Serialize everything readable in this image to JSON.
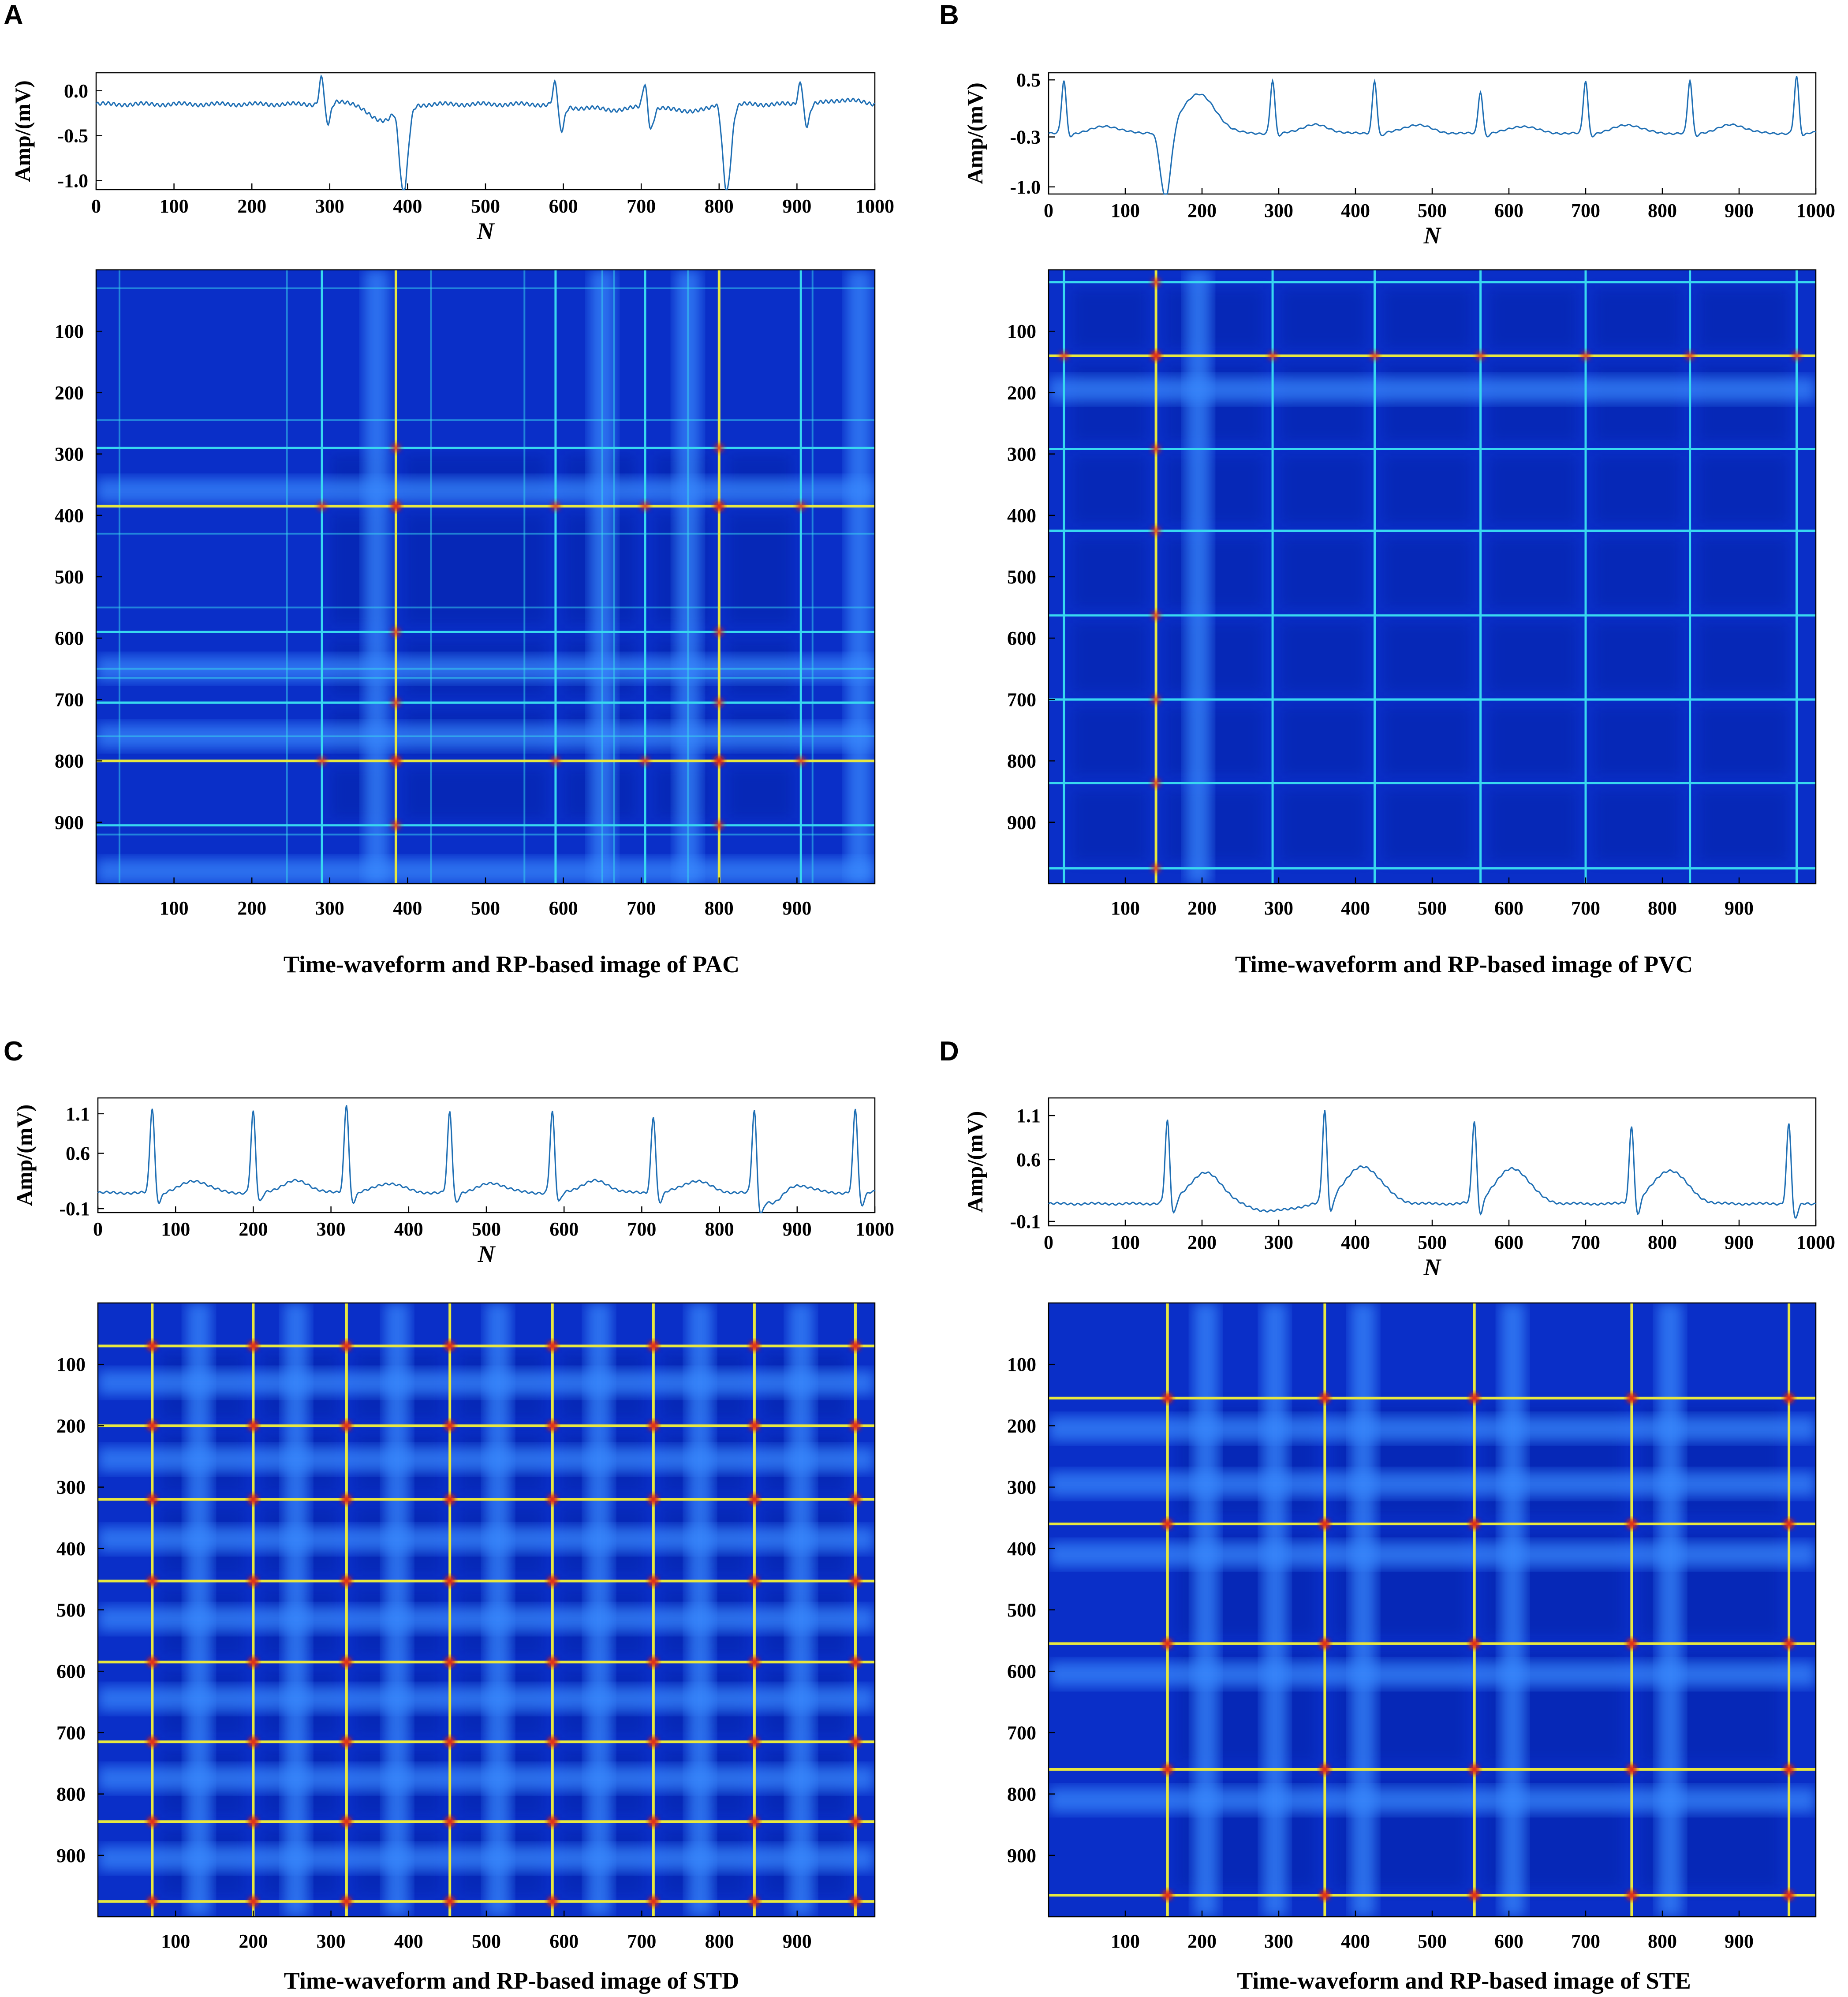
{
  "figure": {
    "panels": [
      {
        "letter": "A",
        "caption": "Time-waveform and RP-based image of PAC",
        "waveform": {
          "ylabel": "Amp/(mV)",
          "xlabel": "N",
          "xlim": [
            0,
            1000
          ],
          "ylim": [
            -1.1,
            0.2
          ],
          "xticks": [
            0,
            100,
            200,
            300,
            400,
            500,
            600,
            700,
            800,
            900,
            1000
          ],
          "yticks": [
            0.0,
            -0.5,
            -1.0
          ],
          "ytick_labels": [
            "0.0",
            "-0.5",
            "-1.0"
          ],
          "baseline": -0.15,
          "noise_amp": 0.018,
          "noise_freq": 0.9,
          "beats": [
            {
              "pos": 290,
              "r_amp": 0.35,
              "s_amp": -0.25,
              "width": 5,
              "t_amp": 0.05
            },
            {
              "pos": 385,
              "r_amp": 0.1,
              "s_amp": -0.95,
              "width": 7,
              "t_amp": 0.0
            },
            {
              "pos": 590,
              "r_amp": 0.3,
              "s_amp": -0.3,
              "width": 5,
              "t_amp": 0.05
            },
            {
              "pos": 705,
              "r_amp": 0.3,
              "s_amp": -0.25,
              "width": 5,
              "t_amp": 0.05
            },
            {
              "pos": 800,
              "r_amp": 0.1,
              "s_amp": -0.95,
              "width": 7,
              "t_amp": 0.0
            },
            {
              "pos": 905,
              "r_amp": 0.3,
              "s_amp": -0.25,
              "width": 5,
              "t_amp": 0.05
            }
          ],
          "waves": [
            {
              "pos": 360,
              "amp": -0.22,
              "width": 22
            },
            {
              "pos": 330,
              "amp": 0.06,
              "width": 18
            },
            {
              "pos": 650,
              "amp": -0.1,
              "width": 30
            },
            {
              "pos": 760,
              "amp": -0.12,
              "width": 25
            }
          ]
        },
        "rp": {
          "xticks": [
            100,
            200,
            300,
            400,
            500,
            600,
            700,
            800,
            900
          ],
          "yticks": [
            100,
            200,
            300,
            400,
            500,
            600,
            700,
            800,
            900
          ],
          "strong_lines": [
            385,
            800
          ],
          "medium_lines": [
            290,
            590,
            705,
            905
          ],
          "faint_lines": [
            30,
            245,
            430,
            550,
            650,
            665,
            760,
            920
          ],
          "bands": [
            360,
            650,
            760,
            980
          ]
        }
      },
      {
        "letter": "B",
        "caption": "Time-waveform and RP-based image of PVC",
        "waveform": {
          "ylabel": "Amp/(mV)",
          "xlabel": "N",
          "xlim": [
            0,
            1000
          ],
          "ylim": [
            -1.1,
            0.6
          ],
          "xticks": [
            0,
            100,
            200,
            300,
            400,
            500,
            600,
            700,
            800,
            900,
            1000
          ],
          "yticks": [
            0.5,
            -0.3,
            -1.0
          ],
          "ytick_labels": [
            "0.5",
            "-0.3",
            "-1.0"
          ],
          "baseline": -0.25,
          "noise_amp": 0.01,
          "noise_freq": 0.6,
          "beats": [
            {
              "pos": 20,
              "r_amp": 0.75,
              "s_amp": -0.05,
              "width": 5,
              "t_amp": 0.1
            },
            {
              "pos": 140,
              "r_amp": 0.05,
              "s_amp": -1.0,
              "width": 9,
              "t_amp": 0.0
            },
            {
              "pos": 292,
              "r_amp": 0.75,
              "s_amp": -0.05,
              "width": 5,
              "t_amp": 0.12
            },
            {
              "pos": 425,
              "r_amp": 0.75,
              "s_amp": -0.05,
              "width": 5,
              "t_amp": 0.12
            },
            {
              "pos": 563,
              "r_amp": 0.6,
              "s_amp": -0.05,
              "width": 5,
              "t_amp": 0.1
            },
            {
              "pos": 700,
              "r_amp": 0.75,
              "s_amp": -0.05,
              "width": 5,
              "t_amp": 0.12
            },
            {
              "pos": 836,
              "r_amp": 0.75,
              "s_amp": -0.05,
              "width": 5,
              "t_amp": 0.12
            },
            {
              "pos": 975,
              "r_amp": 0.8,
              "s_amp": -0.05,
              "width": 5,
              "t_amp": 0.1
            }
          ],
          "waves": [
            {
              "pos": 195,
              "amp": 0.55,
              "width": 22
            }
          ]
        },
        "rp": {
          "xticks": [
            100,
            200,
            300,
            400,
            500,
            600,
            700,
            800,
            900
          ],
          "yticks": [
            100,
            200,
            300,
            400,
            500,
            600,
            700,
            800,
            900
          ],
          "strong_lines": [
            140
          ],
          "medium_lines": [
            20,
            292,
            425,
            563,
            700,
            836,
            975
          ],
          "faint_lines": [],
          "bands": [
            195
          ]
        }
      },
      {
        "letter": "C",
        "caption": "Time-waveform and RP-based image of STD",
        "waveform": {
          "ylabel": "Amp/(mV)",
          "xlabel": "N",
          "xlim": [
            0,
            1000
          ],
          "ylim": [
            -0.15,
            1.3
          ],
          "xticks": [
            0,
            100,
            200,
            300,
            400,
            500,
            600,
            700,
            800,
            900,
            1000
          ],
          "yticks": [
            1.1,
            0.6,
            -0.1
          ],
          "ytick_labels": [
            "1.1",
            "0.6",
            "-0.1"
          ],
          "baseline": 0.1,
          "noise_amp": 0.012,
          "noise_freq": 0.7,
          "beats": [
            {
              "pos": 70,
              "r_amp": 1.1,
              "s_amp": -0.15,
              "width": 5,
              "t_amp": 0.15
            },
            {
              "pos": 200,
              "r_amp": 1.05,
              "s_amp": -0.15,
              "width": 5,
              "t_amp": 0.15
            },
            {
              "pos": 320,
              "r_amp": 1.15,
              "s_amp": -0.15,
              "width": 5,
              "t_amp": 0.12
            },
            {
              "pos": 453,
              "r_amp": 1.05,
              "s_amp": -0.15,
              "width": 5,
              "t_amp": 0.12
            },
            {
              "pos": 585,
              "r_amp": 1.05,
              "s_amp": -0.15,
              "width": 5,
              "t_amp": 0.15
            },
            {
              "pos": 715,
              "r_amp": 1.0,
              "s_amp": -0.15,
              "width": 5,
              "t_amp": 0.15
            },
            {
              "pos": 845,
              "r_amp": 1.1,
              "s_amp": -0.25,
              "width": 5,
              "t_amp": 0.1
            },
            {
              "pos": 975,
              "r_amp": 1.1,
              "s_amp": -0.2,
              "width": 5,
              "t_amp": 0.1
            }
          ],
          "waves": [
            {
              "pos": 870,
              "amp": -0.15,
              "width": 12
            }
          ]
        },
        "rp": {
          "xticks": [
            100,
            200,
            300,
            400,
            500,
            600,
            700,
            800,
            900
          ],
          "yticks": [
            100,
            200,
            300,
            400,
            500,
            600,
            700,
            800,
            900
          ],
          "strong_lines": [
            70,
            200,
            320,
            453,
            585,
            715,
            845,
            975
          ],
          "medium_lines": [],
          "faint_lines": [],
          "bands": [
            130,
            255,
            385,
            515,
            645,
            775,
            905
          ]
        }
      },
      {
        "letter": "D",
        "caption": "Time-waveform and RP-based image of STE",
        "waveform": {
          "ylabel": "Amp/(mV)",
          "xlabel": "N",
          "xlim": [
            0,
            1000
          ],
          "ylim": [
            -0.15,
            1.3
          ],
          "xticks": [
            0,
            100,
            200,
            300,
            400,
            500,
            600,
            700,
            800,
            900,
            1000
          ],
          "yticks": [
            1.1,
            0.6,
            -0.1
          ],
          "ytick_labels": [
            "1.1",
            "0.6",
            "-0.1"
          ],
          "baseline": 0.1,
          "noise_amp": 0.01,
          "noise_freq": 0.7,
          "beats": [
            {
              "pos": 155,
              "r_amp": 0.95,
              "s_amp": -0.2,
              "width": 5,
              "t_amp": 0.0
            },
            {
              "pos": 360,
              "r_amp": 1.05,
              "s_amp": -0.2,
              "width": 5,
              "t_amp": 0.0
            },
            {
              "pos": 555,
              "r_amp": 0.95,
              "s_amp": -0.2,
              "width": 5,
              "t_amp": 0.0
            },
            {
              "pos": 760,
              "r_amp": 0.9,
              "s_amp": -0.2,
              "width": 5,
              "t_amp": 0.0
            },
            {
              "pos": 965,
              "r_amp": 0.95,
              "s_amp": -0.2,
              "width": 5,
              "t_amp": 0.0
            }
          ],
          "waves": [
            {
              "pos": 205,
              "amp": 0.35,
              "width": 22
            },
            {
              "pos": 410,
              "amp": 0.42,
              "width": 24
            },
            {
              "pos": 605,
              "amp": 0.4,
              "width": 22
            },
            {
              "pos": 810,
              "amp": 0.38,
              "width": 22
            },
            {
              "pos": 290,
              "amp": -0.08,
              "width": 30
            }
          ]
        },
        "rp": {
          "xticks": [
            100,
            200,
            300,
            400,
            500,
            600,
            700,
            800,
            900
          ],
          "yticks": [
            100,
            200,
            300,
            400,
            500,
            600,
            700,
            800,
            900
          ],
          "strong_lines": [
            155,
            360,
            555,
            760,
            965
          ],
          "medium_lines": [],
          "faint_lines": [],
          "bands": [
            205,
            410,
            605,
            810,
            295
          ]
        }
      }
    ]
  },
  "chart_data": [
    {
      "type": "line",
      "title": "Time-waveform and RP-based image of PAC",
      "xlabel": "N",
      "ylabel": "Amp/(mV)",
      "xlim": [
        0,
        1000
      ],
      "yticks": [
        0.0,
        -0.5,
        -1.0
      ],
      "beats_at": [
        290,
        385,
        590,
        705,
        800,
        905
      ]
    },
    {
      "type": "heatmap",
      "title": "Time-waveform and RP-based image of PAC",
      "xlim": [
        0,
        1000
      ],
      "ylim": [
        0,
        1000
      ],
      "highlight_lines": [
        290,
        385,
        590,
        705,
        800,
        905
      ]
    },
    {
      "type": "line",
      "title": "Time-waveform and RP-based image of PVC",
      "xlabel": "N",
      "ylabel": "Amp/(mV)",
      "xlim": [
        0,
        1000
      ],
      "yticks": [
        0.5,
        -0.3,
        -1.0
      ],
      "beats_at": [
        20,
        140,
        292,
        425,
        563,
        700,
        836,
        975
      ]
    },
    {
      "type": "heatmap",
      "title": "Time-waveform and RP-based image of PVC",
      "xlim": [
        0,
        1000
      ],
      "ylim": [
        0,
        1000
      ],
      "highlight_lines": [
        20,
        140,
        292,
        425,
        563,
        700,
        836,
        975
      ]
    },
    {
      "type": "line",
      "title": "Time-waveform and RP-based image of STD",
      "xlabel": "N",
      "ylabel": "Amp/(mV)",
      "xlim": [
        0,
        1000
      ],
      "yticks": [
        1.1,
        0.6,
        -0.1
      ],
      "beats_at": [
        70,
        200,
        320,
        453,
        585,
        715,
        845,
        975
      ]
    },
    {
      "type": "heatmap",
      "title": "Time-waveform and RP-based image of STD",
      "xlim": [
        0,
        1000
      ],
      "ylim": [
        0,
        1000
      ],
      "highlight_lines": [
        70,
        200,
        320,
        453,
        585,
        715,
        845,
        975
      ]
    },
    {
      "type": "line",
      "title": "Time-waveform and RP-based image of STE",
      "xlabel": "N",
      "ylabel": "Amp/(mV)",
      "xlim": [
        0,
        1000
      ],
      "yticks": [
        1.1,
        0.6,
        -0.1
      ],
      "beats_at": [
        155,
        360,
        555,
        760,
        965
      ]
    },
    {
      "type": "heatmap",
      "title": "Time-waveform and RP-based image of STE",
      "xlim": [
        0,
        1000
      ],
      "ylim": [
        0,
        1000
      ],
      "highlight_lines": [
        155,
        360,
        555,
        760,
        965
      ]
    }
  ],
  "colors": {
    "waveform_line": "#1f6fb4",
    "rp_background": "#0a2fc8",
    "rp_dark": "#061c9a",
    "rp_band": "#3a8cff",
    "rp_line_cyan": "#38d8f0",
    "rp_line_yellow": "#e8e840",
    "rp_hot": "#e02010"
  }
}
